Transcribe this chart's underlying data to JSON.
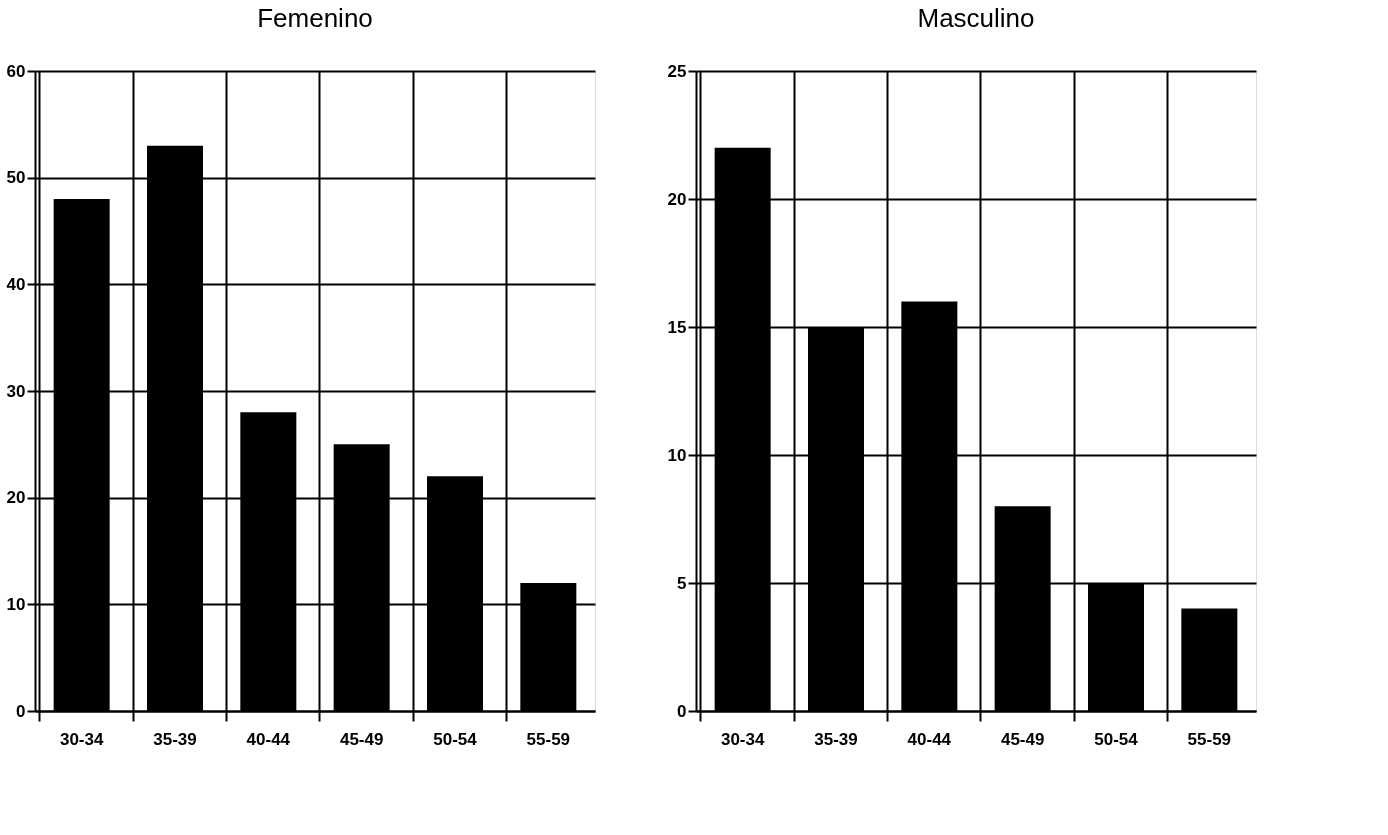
{
  "chart_data": [
    {
      "type": "bar",
      "title": "Femenino",
      "categories": [
        "30-34",
        "35-39",
        "40-44",
        "45-49",
        "50-54",
        "55-59"
      ],
      "values": [
        48,
        53,
        28,
        25,
        22,
        12
      ],
      "color": "#000000",
      "ylim": [
        0,
        60
      ],
      "yticks": [
        0,
        10,
        20,
        30,
        40,
        50,
        60
      ],
      "grid": true
    },
    {
      "type": "bar",
      "title": "Masculino",
      "categories": [
        "30-34",
        "35-39",
        "40-44",
        "45-49",
        "50-54",
        "55-59"
      ],
      "values": [
        22,
        15,
        16,
        8,
        5,
        4
      ],
      "color": "#000000",
      "ylim": [
        0,
        25
      ],
      "yticks": [
        0,
        5,
        10,
        15,
        20,
        25
      ],
      "grid": true
    }
  ]
}
